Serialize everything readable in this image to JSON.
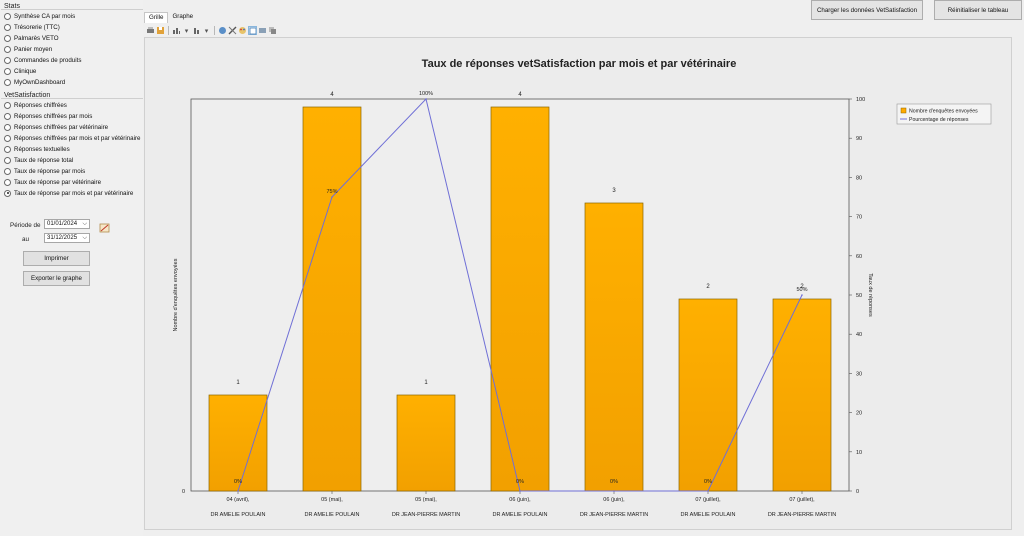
{
  "top_buttons": {
    "load": "Charger les données VetSatisfaction",
    "reset": "Réinitialiser le tableau"
  },
  "stats": {
    "title": "Stats",
    "items": [
      "Synthèse CA par mois",
      "Trésorerie (TTC)",
      "Palmarès VETO",
      "Panier moyen",
      "Commandes de produits",
      "Clinique",
      "MyOwnDashboard"
    ]
  },
  "vet": {
    "title": "VetSatisfaction",
    "items": [
      "Réponses chiffrées",
      "Réponses chiffrées par mois",
      "Réponses chiffrées par vétérinaire",
      "Réponses chiffrées par mois et par vétérinaire",
      "Réponses textuelles",
      "Taux de réponse total",
      "Taux de réponse par mois",
      "Taux de réponse par vétérinaire",
      "Taux de réponse par mois et par vétérinaire"
    ],
    "selected_index": 8
  },
  "period": {
    "label_from": "Période de",
    "label_to": "au",
    "from": "01/01/2024",
    "to": "31/12/2025"
  },
  "buttons": {
    "print": "Imprimer",
    "export": "Exporter le graphe"
  },
  "tabs": [
    "Grille",
    "Graphe"
  ],
  "icons": [
    "print-icon",
    "save-icon",
    "bar-chart-icon",
    "chart-type-icon",
    "globe-icon",
    "tools-icon",
    "palette-icon",
    "select-icon",
    "page-icon",
    "copy-icon"
  ],
  "colors": {
    "bar": "#FFAA00",
    "bar_stroke": "#8a6500",
    "line": "#6f6fd6"
  },
  "chart_data": {
    "type": "bar",
    "title": "Taux de réponses vetSatisfaction par mois et par vétérinaire",
    "categories": [
      [
        "04 (avril),",
        "DR AMELIE POULAIN"
      ],
      [
        "05 (mai),",
        "DR AMELIE POULAIN"
      ],
      [
        "05 (mai),",
        "DR JEAN-PIERRE MARTIN"
      ],
      [
        "06 (juin),",
        "DR AMELIE POULAIN"
      ],
      [
        "06 (juin),",
        "DR JEAN-PIERRE MARTIN"
      ],
      [
        "07 (juillet),",
        "DR AMELIE POULAIN"
      ],
      [
        "07 (juillet),",
        "DR JEAN-PIERRE MARTIN"
      ]
    ],
    "series": [
      {
        "name": "Nombre d'enquêtes envoyées",
        "values": [
          1,
          4,
          1,
          4,
          3,
          2,
          2
        ],
        "labels": [
          "1",
          "4",
          "1",
          "4",
          "3",
          "2",
          "2"
        ]
      },
      {
        "name": "Pourcentage de réponses",
        "values": [
          0,
          75,
          100,
          0,
          0,
          0,
          50
        ],
        "labels": [
          "0%",
          "75%",
          "100%",
          "0%",
          "0%",
          "0%",
          "50%"
        ]
      }
    ],
    "ylabel_left": "Nombre d'enquêtes envoyées",
    "ylabel_right": "Taux de réponses",
    "ylim_left": [
      0,
      4
    ],
    "ylim_right": [
      0,
      100
    ],
    "left_ticks": [
      "0"
    ],
    "right_ticks": [
      "0",
      "10",
      "20",
      "30",
      "40",
      "50",
      "60",
      "70",
      "80",
      "90",
      "100"
    ],
    "legend_position": "top-right"
  }
}
